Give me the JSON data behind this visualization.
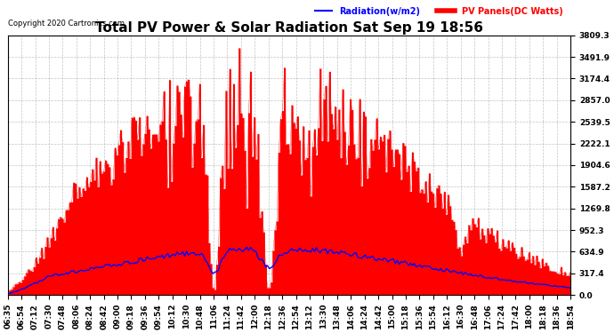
{
  "title": "Total PV Power & Solar Radiation Sat Sep 19 18:56",
  "copyright": "Copyright 2020 Cartronics.com",
  "legend_radiation": "Radiation(w/m2)",
  "legend_pv": "PV Panels(DC Watts)",
  "ylabel_right_values": [
    3809.3,
    3491.9,
    3174.4,
    2857.0,
    2539.5,
    2222.1,
    1904.6,
    1587.2,
    1269.8,
    952.3,
    634.9,
    317.4,
    0.0
  ],
  "ymax": 3809.3,
  "ymin": 0.0,
  "background_color": "#ffffff",
  "plot_bg_color": "#ffffff",
  "grid_color": "#aaaaaa",
  "pv_color": "#ff0000",
  "radiation_color": "#0000ff",
  "title_fontsize": 11,
  "tick_fontsize": 6.5,
  "x_tick_labels": [
    "06:35",
    "06:54",
    "07:12",
    "07:30",
    "07:48",
    "08:06",
    "08:24",
    "08:42",
    "09:00",
    "09:18",
    "09:36",
    "09:54",
    "10:12",
    "10:30",
    "10:48",
    "11:06",
    "11:24",
    "11:42",
    "12:00",
    "12:18",
    "12:36",
    "12:54",
    "13:12",
    "13:30",
    "13:48",
    "14:06",
    "14:24",
    "14:42",
    "15:00",
    "15:18",
    "15:36",
    "15:54",
    "16:12",
    "16:30",
    "16:48",
    "17:06",
    "17:24",
    "17:42",
    "18:00",
    "18:18",
    "18:36",
    "18:54"
  ]
}
